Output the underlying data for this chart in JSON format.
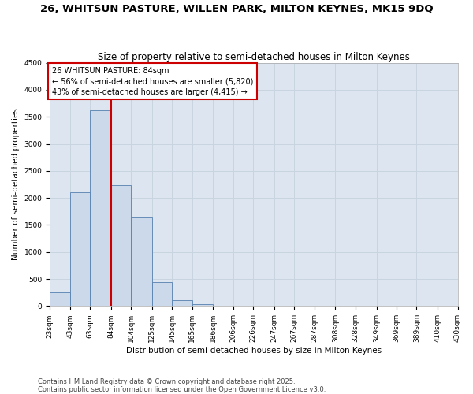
{
  "title": "26, WHITSUN PASTURE, WILLEN PARK, MILTON KEYNES, MK15 9DQ",
  "subtitle": "Size of property relative to semi-detached houses in Milton Keynes",
  "xlabel": "Distribution of semi-detached houses by size in Milton Keynes",
  "ylabel": "Number of semi-detached properties",
  "footnote1": "Contains HM Land Registry data © Crown copyright and database right 2025.",
  "footnote2": "Contains public sector information licensed under the Open Government Licence v3.0.",
  "bins": [
    23,
    43,
    63,
    84,
    104,
    125,
    145,
    165,
    186,
    206,
    226,
    247,
    267,
    287,
    308,
    328,
    349,
    369,
    389,
    410,
    430
  ],
  "counts": [
    250,
    2100,
    3620,
    2240,
    1640,
    440,
    105,
    40,
    10,
    0,
    0,
    0,
    0,
    0,
    0,
    0,
    0,
    0,
    0,
    0
  ],
  "property_size": 84,
  "property_label": "26 WHITSUN PASTURE: 84sqm",
  "pct_smaller": 56,
  "pct_larger": 43,
  "n_smaller": 5820,
  "n_larger": 4415,
  "bar_facecolor": "#ccd9ea",
  "bar_edgecolor": "#5580b0",
  "redline_color": "#cc0000",
  "box_edgecolor": "#cc0000",
  "grid_color": "#c8d4e0",
  "bg_color": "#dde6f0",
  "ylim": [
    0,
    4500
  ],
  "title_fontsize": 9.5,
  "subtitle_fontsize": 8.5,
  "axis_label_fontsize": 7.5,
  "tick_fontsize": 6.5,
  "annotation_fontsize": 7,
  "footnote_fontsize": 6
}
